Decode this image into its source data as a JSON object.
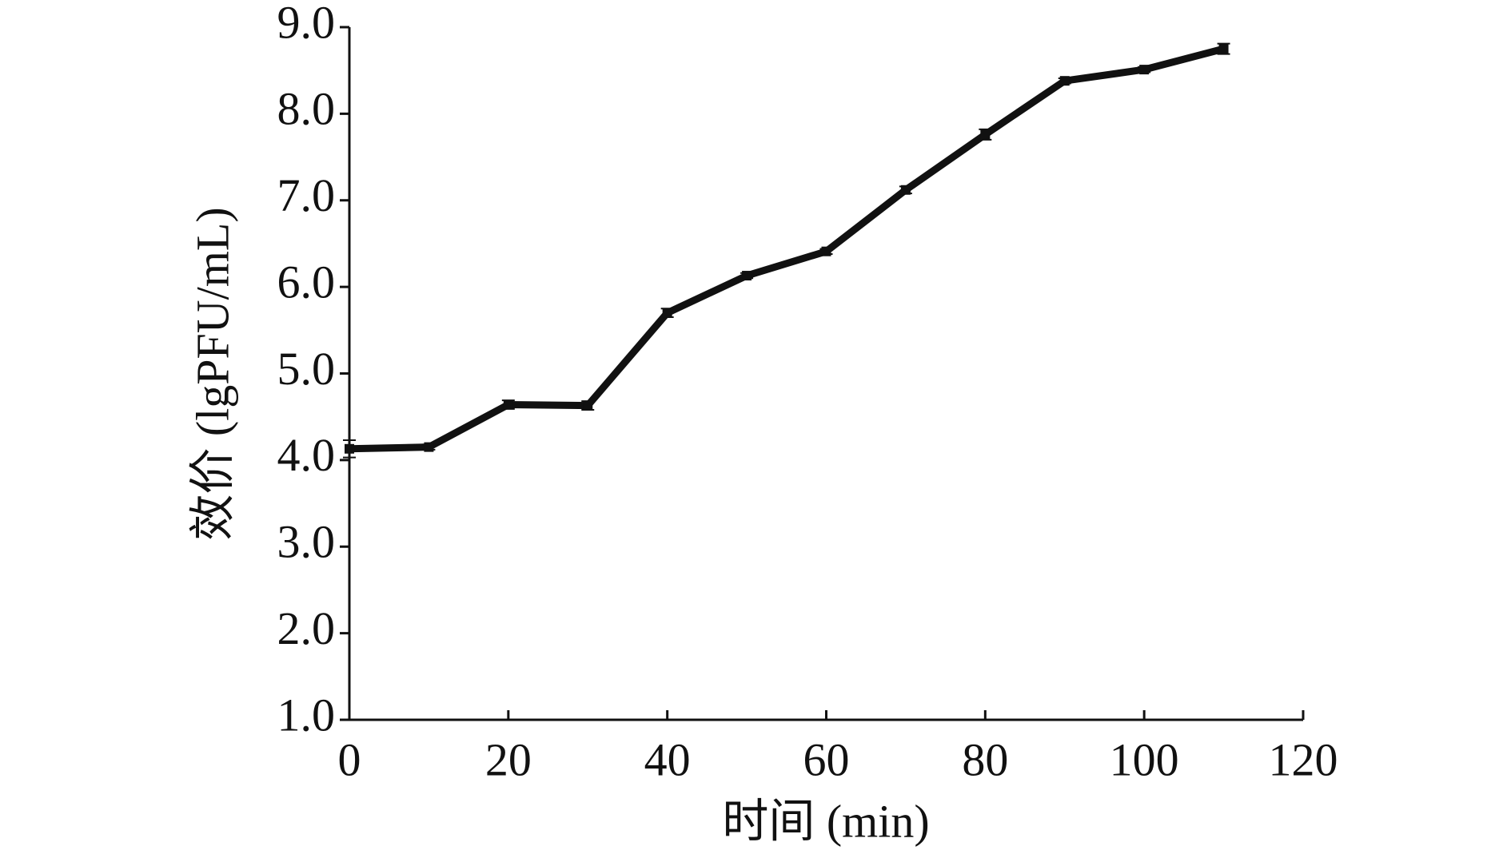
{
  "chart_data": {
    "type": "line",
    "xlabel": "时间 (min)",
    "ylabel": "效价 (lgPFU/mL)",
    "x": [
      0,
      10,
      20,
      30,
      40,
      50,
      60,
      70,
      80,
      90,
      100,
      110
    ],
    "values": [
      4.13,
      4.15,
      4.64,
      4.63,
      5.7,
      6.13,
      6.41,
      7.12,
      7.76,
      8.38,
      8.51,
      8.75
    ],
    "errors": [
      0.1,
      0.03,
      0.05,
      0.05,
      0.05,
      0.03,
      0.03,
      0.04,
      0.06,
      0.03,
      0.03,
      0.06
    ],
    "color": "#111111",
    "xlim": [
      0,
      120
    ],
    "xticks": [
      0,
      20,
      40,
      60,
      80,
      100,
      120
    ],
    "ylim": [
      1,
      9
    ],
    "yticks": [
      {
        "value": 1,
        "label": "1.0"
      },
      {
        "value": 2,
        "label": "2.0"
      },
      {
        "value": 3,
        "label": "3.0"
      },
      {
        "value": 4,
        "label": "4.0"
      },
      {
        "value": 5,
        "label": "5.0"
      },
      {
        "value": 6,
        "label": "6.0"
      },
      {
        "value": 7,
        "label": "7.0"
      },
      {
        "value": 8,
        "label": "8.0"
      },
      {
        "value": 9,
        "label": "9.0"
      }
    ],
    "grid": false
  }
}
